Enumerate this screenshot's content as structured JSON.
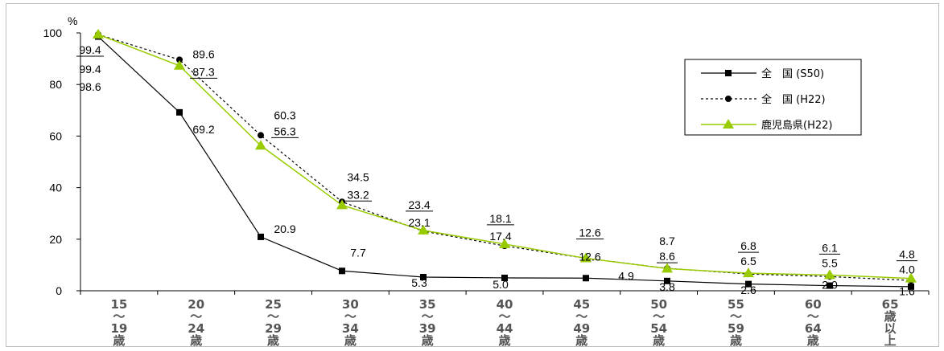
{
  "chart_data": {
    "type": "line",
    "y_unit": "%",
    "ylim": [
      0,
      100
    ],
    "yticks": [
      "0",
      "20",
      "40",
      "60",
      "80",
      "100"
    ],
    "categories": [
      [
        "15",
        "〜",
        "19",
        "歳"
      ],
      [
        "20",
        "〜",
        "24",
        "歳"
      ],
      [
        "25",
        "〜",
        "29",
        "歳"
      ],
      [
        "30",
        "〜",
        "34",
        "歳"
      ],
      [
        "35",
        "〜",
        "39",
        "歳"
      ],
      [
        "40",
        "〜",
        "44",
        "歳"
      ],
      [
        "45",
        "〜",
        "49",
        "歳"
      ],
      [
        "50",
        "〜",
        "54",
        "歳"
      ],
      [
        "55",
        "〜",
        "59",
        "歳"
      ],
      [
        "60",
        "〜",
        "64",
        "歳"
      ],
      [
        "65",
        "歳",
        "以",
        "上"
      ]
    ],
    "series": [
      {
        "name": "全　国 (S50)",
        "values": [
          98.6,
          69.2,
          20.9,
          7.7,
          5.3,
          5.0,
          4.9,
          3.8,
          2.6,
          2.0,
          1.6
        ],
        "color": "#000000",
        "marker": "square",
        "dash": "solid"
      },
      {
        "name": "全　国 (H22)",
        "values": [
          99.4,
          89.6,
          60.3,
          34.5,
          23.1,
          17.4,
          12.6,
          8.7,
          6.5,
          5.5,
          4.0
        ],
        "color": "#000000",
        "marker": "circle",
        "dash": "dotted"
      },
      {
        "name": "鹿児島県(H22)",
        "values": [
          99.4,
          87.3,
          56.3,
          33.2,
          23.4,
          18.1,
          12.6,
          8.6,
          6.8,
          6.1,
          4.8
        ],
        "color": "#99cc00",
        "marker": "triangle",
        "dash": "solid",
        "underlined_labels": true
      }
    ],
    "legend": "top-right",
    "grid": false,
    "data_labels": {
      "15": [
        "99.4",
        "99.4",
        "98.6"
      ],
      "20": [
        "89.6",
        "87.3",
        "69.2"
      ],
      "25": [
        "60.3",
        "56.3",
        "20.9"
      ],
      "30": [
        "34.5",
        "33.2",
        "7.7"
      ],
      "35": [
        "23.4",
        "23.1",
        "5.3"
      ],
      "40": [
        "18.1",
        "17.4",
        "5.0"
      ],
      "45": [
        "12.6",
        "12.6",
        "4.9"
      ],
      "50": [
        "8.7",
        "8.6",
        "3.8"
      ],
      "55": [
        "6.8",
        "6.5",
        "2.6"
      ],
      "60": [
        "6.1",
        "5.5",
        "2.0"
      ],
      "65": [
        "4.8",
        "4.0",
        "1.6"
      ]
    }
  }
}
